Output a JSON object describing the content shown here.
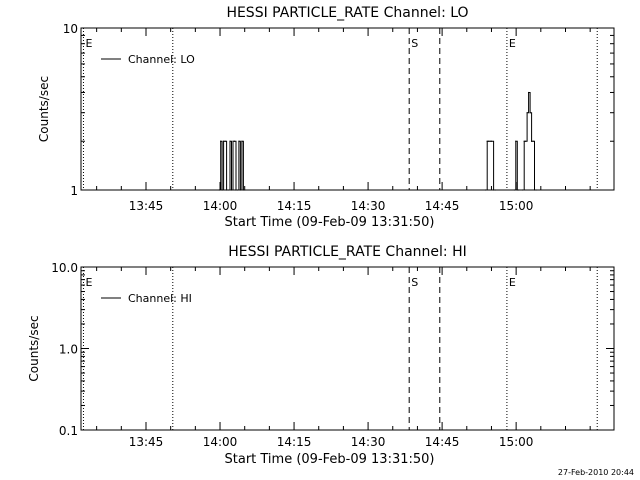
{
  "footer": {
    "timestamp": "27-Feb-2010 20:44"
  },
  "chart_data": [
    {
      "type": "line",
      "title": "HESSI PARTICLE_RATE Channel: LO",
      "xlabel": "Start Time (09-Feb-09 13:31:50)",
      "ylabel": "Counts/sec",
      "x_unit": "minutes after 13:31:50",
      "xlim": [
        0,
        108
      ],
      "ylim": [
        1,
        10
      ],
      "yscale": "log",
      "ytick_labels": [
        "1",
        "10"
      ],
      "ytick_values": [
        1,
        10
      ],
      "xtick_labels": [
        "13:45",
        "14:00",
        "14:15",
        "14:30",
        "14:45",
        "15:00"
      ],
      "xtick_values": [
        13.17,
        28.17,
        43.17,
        58.17,
        73.17,
        88.17
      ],
      "legend": {
        "label": "Channel: LO",
        "placement": "top-left"
      },
      "grid": false,
      "markers": [
        {
          "x": 0.5,
          "label": "E",
          "style": "dotted"
        },
        {
          "x": 18.6,
          "label": "",
          "style": "dotted"
        },
        {
          "x": 66.5,
          "label": "S",
          "style": "dashed"
        },
        {
          "x": 72.7,
          "label": "",
          "style": "dashed"
        },
        {
          "x": 86.3,
          "label": "E",
          "style": "dotted"
        },
        {
          "x": 104.6,
          "label": "",
          "style": "dotted"
        }
      ],
      "series": [
        {
          "name": "Channel: LO",
          "x": [
            28.0,
            28.3,
            28.6,
            28.9,
            29.2,
            29.5,
            29.8,
            30.2,
            30.5,
            30.8,
            31.1,
            31.4,
            31.7,
            32.0,
            32.3,
            32.6,
            32.9,
            33.2,
            82.0,
            82.3,
            82.6,
            82.9,
            83.2,
            83.6,
            83.9,
            87.8,
            88.1,
            88.4,
            88.7,
            89.5,
            89.8,
            90.1,
            90.4,
            90.7,
            91.0,
            91.3,
            91.6,
            91.9,
            92.2
          ],
          "values": [
            1,
            2,
            1,
            2,
            2,
            1,
            1,
            2,
            1,
            2,
            2,
            1,
            1,
            2,
            1,
            2,
            1,
            1,
            1,
            2,
            2,
            2,
            2,
            1,
            1,
            1,
            2,
            1,
            1,
            1,
            2,
            2,
            3,
            4,
            3,
            2,
            2,
            1,
            1
          ]
        }
      ]
    },
    {
      "type": "line",
      "title": "HESSI PARTICLE_RATE Channel: HI",
      "xlabel": "Start Time (09-Feb-09 13:31:50)",
      "ylabel": "Counts/sec",
      "x_unit": "minutes after 13:31:50",
      "xlim": [
        0,
        108
      ],
      "ylim": [
        0.1,
        10
      ],
      "yscale": "log",
      "ytick_labels": [
        "0.1",
        "1.0",
        "10.0"
      ],
      "ytick_values": [
        0.1,
        1,
        10
      ],
      "xtick_labels": [
        "13:45",
        "14:00",
        "14:15",
        "14:30",
        "14:45",
        "15:00"
      ],
      "xtick_values": [
        13.17,
        28.17,
        43.17,
        58.17,
        73.17,
        88.17
      ],
      "legend": {
        "label": "Channel: HI",
        "placement": "top-left"
      },
      "grid": false,
      "markers": [
        {
          "x": 0.5,
          "label": "E",
          "style": "dotted"
        },
        {
          "x": 18.6,
          "label": "",
          "style": "dotted"
        },
        {
          "x": 66.5,
          "label": "S",
          "style": "dashed"
        },
        {
          "x": 72.7,
          "label": "",
          "style": "dashed"
        },
        {
          "x": 86.3,
          "label": "E",
          "style": "dotted"
        },
        {
          "x": 104.6,
          "label": "",
          "style": "dotted"
        }
      ],
      "series": [
        {
          "name": "Channel: HI",
          "x": [],
          "values": []
        }
      ]
    }
  ]
}
